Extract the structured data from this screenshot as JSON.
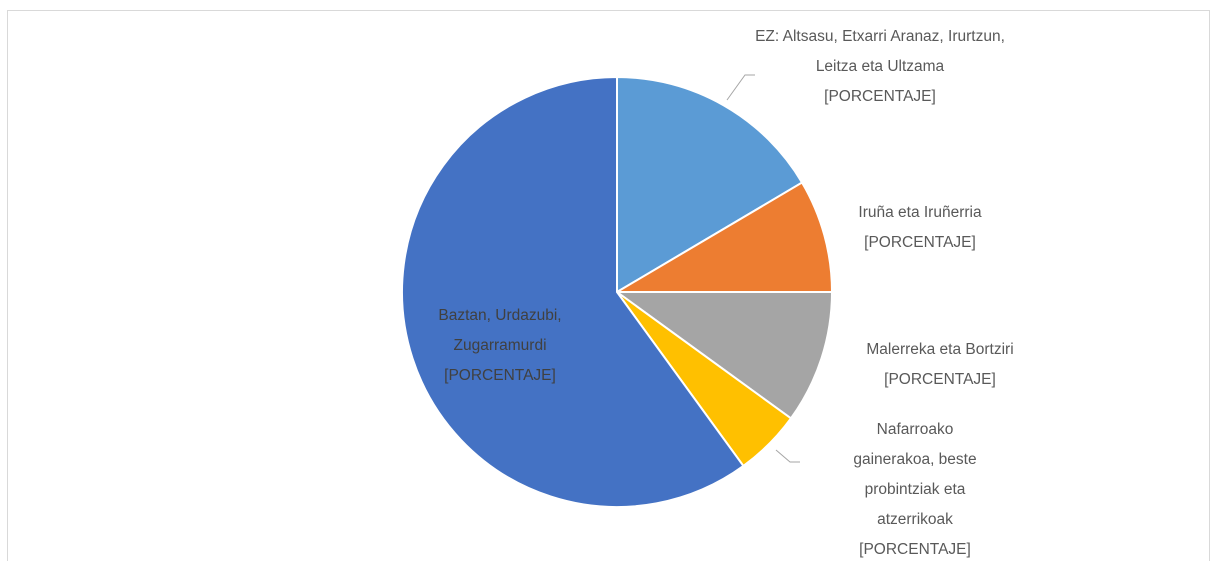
{
  "chart_data": {
    "type": "pie",
    "categories": [
      "EZ: Altsasu, Etxarri Aranaz, Irurtzun, Leitza eta Ultzama",
      "Iruña eta Iruñerria",
      "Malerreka eta Bortziri",
      "Nafarroako gainerakoa, beste probintziak eta atzerrikoak",
      "Baztan, Urdazubi, Zugarramurdi"
    ],
    "values": [
      16.5,
      8.5,
      10,
      5,
      60
    ],
    "value_labels": [
      "[PORCENTAJE]",
      "[PORCENTAJE]",
      "[PORCENTAJE]",
      "[PORCENTAJE]",
      "[PORCENTAJE]"
    ],
    "colors": [
      "#5b9bd5",
      "#ed7d31",
      "#a5a5a5",
      "#ffc000",
      "#4472c4"
    ]
  }
}
